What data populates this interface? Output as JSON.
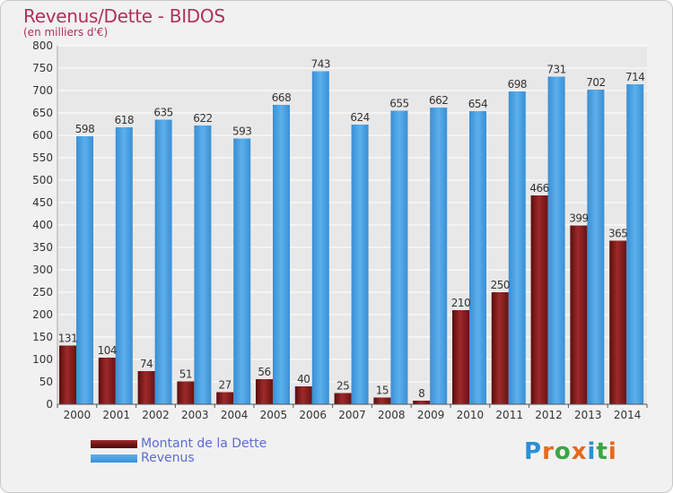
{
  "title": "Revenus/Dette - BIDOS",
  "subtitle": "(en milliers d'€)",
  "legend": {
    "dette_label": "Montant de la Dette",
    "revenus_label": "Revenus"
  },
  "logo": {
    "letters": [
      "P",
      "r",
      "o",
      "x",
      "i",
      "t",
      "i"
    ],
    "colors": [
      "#2b8fd6",
      "#e56a1b",
      "#3da444",
      "#e56a1b",
      "#2b8fd6",
      "#3da444",
      "#e56a1b"
    ]
  },
  "colors": {
    "dette": "#8a1a1a",
    "revenus": "#4a9fe0",
    "grid": "#ffffff",
    "axis_text": "#333333"
  },
  "chart_data": {
    "type": "bar",
    "categories": [
      "2000",
      "2001",
      "2002",
      "2003",
      "2004",
      "2005",
      "2006",
      "2007",
      "2008",
      "2009",
      "2010",
      "2011",
      "2012",
      "2013",
      "2014"
    ],
    "series": [
      {
        "name": "Montant de la Dette",
        "values": [
          131,
          104,
          74,
          51,
          27,
          56,
          40,
          25,
          15,
          8,
          210,
          250,
          466,
          399,
          365
        ],
        "labels": [
          "131",
          "104",
          "74",
          "51",
          "27",
          "56",
          "40",
          "25",
          "15",
          "8",
          "210",
          "250",
          "466",
          "399",
          "365"
        ]
      },
      {
        "name": "Revenus",
        "values": [
          598,
          618,
          635,
          622,
          593,
          668,
          743,
          624,
          655,
          662,
          654,
          698,
          731,
          702,
          714
        ],
        "labels": [
          "598",
          "618",
          "635",
          "622",
          "593",
          "668",
          "743",
          "624",
          "655",
          "662",
          "654",
          "698",
          "731",
          "702",
          "714"
        ]
      }
    ],
    "ylim": [
      0,
      800
    ],
    "yticks": [
      "0",
      "50",
      "100",
      "150",
      "200",
      "250",
      "300",
      "350",
      "400",
      "450",
      "500",
      "550",
      "600",
      "650",
      "700",
      "750",
      "800"
    ],
    "grid": true
  }
}
